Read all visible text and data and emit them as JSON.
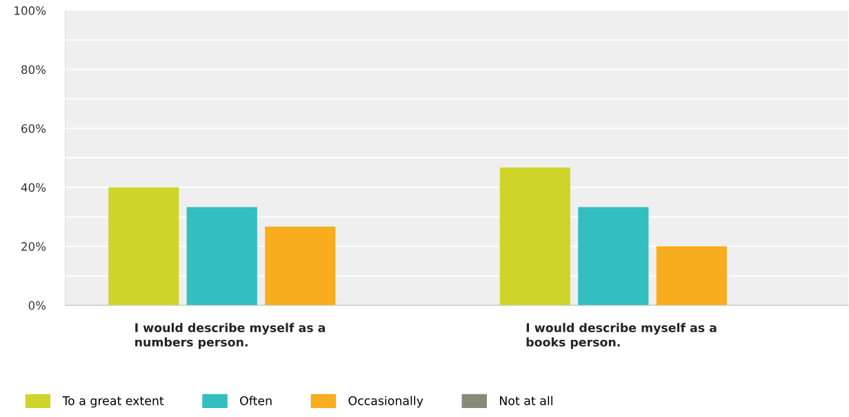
{
  "chart_data": {
    "type": "bar",
    "categories": [
      "I would describe myself as a\nnumbers person.",
      "I would describe myself as a\nbooks person."
    ],
    "series": [
      {
        "name": "To a great extent",
        "color": "#cfd52a",
        "values": [
          40,
          46.7
        ]
      },
      {
        "name": "Often",
        "color": "#33bec0",
        "values": [
          33.3,
          33.3
        ]
      },
      {
        "name": "Occasionally",
        "color": "#f7ad1e",
        "values": [
          26.7,
          20
        ]
      },
      {
        "name": "Not at all",
        "color": "#898a78",
        "values": [
          0,
          0
        ]
      }
    ],
    "ylim": [
      0,
      100
    ],
    "yticks": [
      {
        "value": 0,
        "label": "0%"
      },
      {
        "value": 10,
        "label": null
      },
      {
        "value": 20,
        "label": "20%"
      },
      {
        "value": 30,
        "label": null
      },
      {
        "value": 40,
        "label": "40%"
      },
      {
        "value": 50,
        "label": null
      },
      {
        "value": 60,
        "label": "60%"
      },
      {
        "value": 70,
        "label": null
      },
      {
        "value": 80,
        "label": "80%"
      },
      {
        "value": 90,
        "label": null
      },
      {
        "value": 100,
        "label": "100%"
      }
    ],
    "grid": "y",
    "legend": "bottom"
  }
}
